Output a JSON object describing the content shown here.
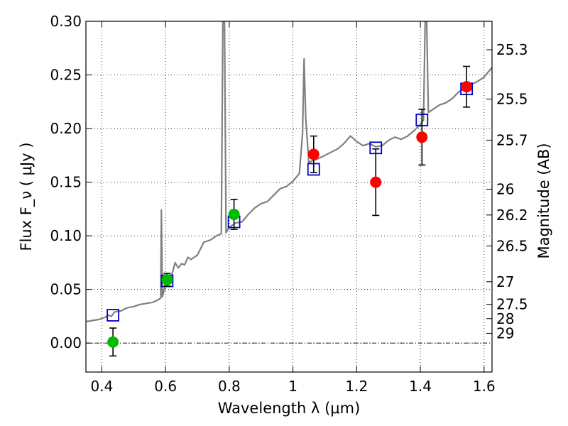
{
  "chart_data": {
    "type": "scatter",
    "xlabel": "Wavelength λ (μm)",
    "ylabel": "Flux F_ν ( μJy )",
    "y2label": "Magnitude (AB)",
    "xlim": [
      0.35,
      1.625
    ],
    "ylim": [
      -0.027,
      0.3
    ],
    "x_ticks": [
      0.4,
      0.6,
      0.8,
      1.0,
      1.2,
      1.4,
      1.6
    ],
    "x_tick_labels": [
      "0.4",
      "0.6",
      "0.8",
      "1",
      "1.2",
      "1.4",
      "1.6"
    ],
    "y_ticks": [
      0.0,
      0.05,
      0.1,
      0.15,
      0.2,
      0.25,
      0.3
    ],
    "y_tick_labels": [
      "0.00",
      "0.05",
      "0.10",
      "0.15",
      "0.20",
      "0.25",
      "0.30"
    ],
    "mag_ticks": [
      {
        "label": "25.3",
        "flux": 0.2735
      },
      {
        "label": "25.5",
        "flux": 0.2275
      },
      {
        "label": "25.7",
        "flux": 0.1892
      },
      {
        "label": "26",
        "flux": 0.1435
      },
      {
        "label": "26.2",
        "flux": 0.1194
      },
      {
        "label": "26.5",
        "flux": 0.0906
      },
      {
        "label": "27",
        "flux": 0.0572
      },
      {
        "label": "27.5",
        "flux": 0.0361
      },
      {
        "label": "28",
        "flux": 0.0228
      },
      {
        "label": "29",
        "flux": 0.0091
      }
    ],
    "grid": true,
    "zero_line": 0.0,
    "series": [
      {
        "kind": "spectrum",
        "color": "#808080",
        "points": [
          [
            0.35,
            0.02
          ],
          [
            0.37,
            0.021
          ],
          [
            0.39,
            0.022
          ],
          [
            0.41,
            0.024
          ],
          [
            0.42,
            0.026
          ],
          [
            0.43,
            0.025
          ],
          [
            0.44,
            0.029
          ],
          [
            0.46,
            0.03
          ],
          [
            0.48,
            0.033
          ],
          [
            0.5,
            0.034
          ],
          [
            0.52,
            0.036
          ],
          [
            0.54,
            0.037
          ],
          [
            0.56,
            0.038
          ],
          [
            0.575,
            0.04
          ],
          [
            0.585,
            0.042
          ],
          [
            0.587,
            0.124
          ],
          [
            0.59,
            0.043
          ],
          [
            0.6,
            0.055
          ],
          [
            0.61,
            0.06
          ],
          [
            0.62,
            0.064
          ],
          [
            0.63,
            0.075
          ],
          [
            0.64,
            0.07
          ],
          [
            0.65,
            0.074
          ],
          [
            0.66,
            0.073
          ],
          [
            0.67,
            0.08
          ],
          [
            0.68,
            0.078
          ],
          [
            0.7,
            0.082
          ],
          [
            0.72,
            0.094
          ],
          [
            0.74,
            0.096
          ],
          [
            0.76,
            0.1
          ],
          [
            0.775,
            0.102
          ],
          [
            0.78,
            0.3
          ],
          [
            0.785,
            0.3
          ],
          [
            0.79,
            0.103
          ],
          [
            0.8,
            0.108
          ],
          [
            0.82,
            0.112
          ],
          [
            0.84,
            0.113
          ],
          [
            0.86,
            0.12
          ],
          [
            0.88,
            0.126
          ],
          [
            0.9,
            0.13
          ],
          [
            0.92,
            0.132
          ],
          [
            0.94,
            0.138
          ],
          [
            0.96,
            0.144
          ],
          [
            0.98,
            0.146
          ],
          [
            1.0,
            0.151
          ],
          [
            1.02,
            0.158
          ],
          [
            1.03,
            0.195
          ],
          [
            1.035,
            0.265
          ],
          [
            1.04,
            0.21
          ],
          [
            1.05,
            0.168
          ],
          [
            1.06,
            0.17
          ],
          [
            1.08,
            0.172
          ],
          [
            1.1,
            0.175
          ],
          [
            1.12,
            0.178
          ],
          [
            1.14,
            0.181
          ],
          [
            1.16,
            0.186
          ],
          [
            1.18,
            0.193
          ],
          [
            1.2,
            0.188
          ],
          [
            1.22,
            0.184
          ],
          [
            1.24,
            0.186
          ],
          [
            1.26,
            0.183
          ],
          [
            1.28,
            0.184
          ],
          [
            1.3,
            0.189
          ],
          [
            1.32,
            0.192
          ],
          [
            1.34,
            0.19
          ],
          [
            1.36,
            0.193
          ],
          [
            1.38,
            0.198
          ],
          [
            1.4,
            0.204
          ],
          [
            1.41,
            0.208
          ],
          [
            1.415,
            0.3
          ],
          [
            1.42,
            0.3
          ],
          [
            1.425,
            0.215
          ],
          [
            1.44,
            0.218
          ],
          [
            1.46,
            0.222
          ],
          [
            1.48,
            0.224
          ],
          [
            1.5,
            0.228
          ],
          [
            1.52,
            0.234
          ],
          [
            1.54,
            0.238
          ],
          [
            1.56,
            0.241
          ],
          [
            1.58,
            0.244
          ],
          [
            1.6,
            0.248
          ],
          [
            1.625,
            0.257
          ]
        ]
      },
      {
        "kind": "model_squares",
        "color": "#0000cc",
        "points": [
          [
            0.435,
            0.026
          ],
          [
            0.605,
            0.058
          ],
          [
            0.815,
            0.113
          ],
          [
            1.065,
            0.162
          ],
          [
            1.26,
            0.182
          ],
          [
            1.405,
            0.208
          ],
          [
            1.545,
            0.237
          ]
        ]
      },
      {
        "kind": "green_points",
        "color": "#00bb00",
        "points": [
          [
            0.435,
            0.001,
            0.013
          ],
          [
            0.605,
            0.059,
            0.006
          ],
          [
            0.815,
            0.12,
            0.014
          ]
        ]
      },
      {
        "kind": "red_points",
        "color": "#ff0000",
        "points": [
          [
            1.065,
            0.176,
            0.017
          ],
          [
            1.26,
            0.15,
            0.031
          ],
          [
            1.405,
            0.192,
            0.026
          ],
          [
            1.545,
            0.239,
            0.019
          ]
        ]
      }
    ]
  }
}
